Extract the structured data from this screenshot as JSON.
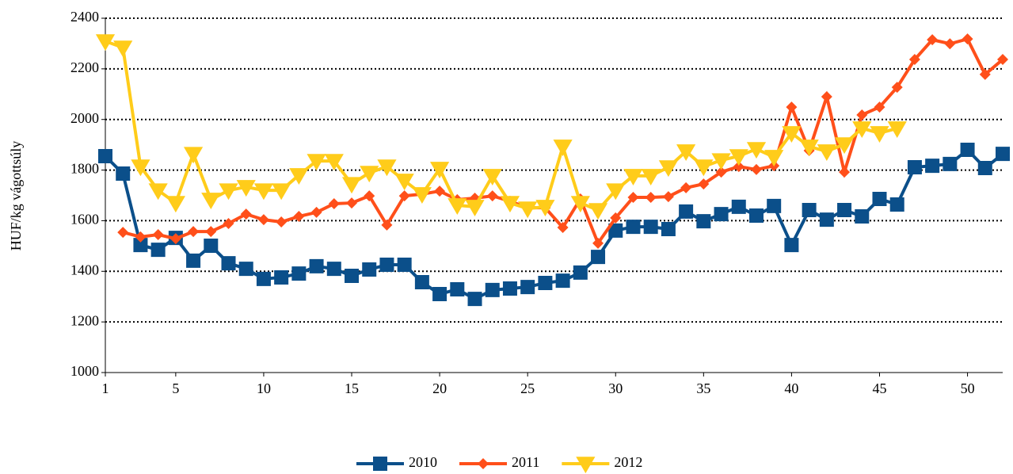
{
  "chart_data": {
    "type": "line",
    "y_label": "HUF/kg vágottsúly",
    "x": [
      1,
      2,
      3,
      4,
      5,
      6,
      7,
      8,
      9,
      10,
      11,
      12,
      13,
      14,
      15,
      16,
      17,
      18,
      19,
      20,
      21,
      22,
      23,
      24,
      25,
      26,
      27,
      28,
      29,
      30,
      31,
      32,
      33,
      34,
      35,
      36,
      37,
      38,
      39,
      40,
      41,
      42,
      43,
      44,
      45,
      46,
      47,
      48,
      49,
      50,
      51,
      52
    ],
    "xlim": [
      1,
      52
    ],
    "xticks": [
      1,
      5,
      10,
      15,
      20,
      25,
      30,
      35,
      40,
      45,
      50
    ],
    "ylim": [
      1000,
      2400
    ],
    "yticks": [
      1000,
      1200,
      1400,
      1600,
      1800,
      2000,
      2200,
      2400
    ],
    "grid": true,
    "legend": "bottom",
    "series": [
      {
        "name": "2010",
        "color": "#0b4f8a",
        "marker": "square",
        "values": [
          1855,
          1786,
          1504,
          1485,
          1532,
          1442,
          1501,
          1432,
          1410,
          1370,
          1376,
          1391,
          1420,
          1410,
          1382,
          1407,
          1426,
          1426,
          1357,
          1310,
          1329,
          1291,
          1326,
          1332,
          1338,
          1354,
          1363,
          1395,
          1457,
          1561,
          1576,
          1576,
          1567,
          1636,
          1598,
          1626,
          1655,
          1620,
          1658,
          1504,
          1642,
          1604,
          1642,
          1617,
          1686,
          1664,
          1811,
          1817,
          1824,
          1880,
          1808,
          1864
        ]
      },
      {
        "name": "2011",
        "color": "#ff4f1a",
        "marker": "diamond",
        "values": [
          null,
          1554,
          1536,
          1545,
          1529,
          1557,
          1557,
          1589,
          1626,
          1604,
          1595,
          1617,
          1633,
          1667,
          1670,
          1698,
          1583,
          1698,
          1705,
          1717,
          1683,
          1689,
          1698,
          1677,
          1651,
          1651,
          1573,
          1686,
          1511,
          1611,
          1692,
          1692,
          1695,
          1730,
          1745,
          1792,
          1814,
          1802,
          1817,
          2049,
          1877,
          2090,
          1792,
          2018,
          2049,
          2127,
          2237,
          2315,
          2299,
          2318,
          2178,
          2237
        ]
      },
      {
        "name": "2012",
        "color": "#ffcc1a",
        "marker": "triangle-down",
        "values": [
          2309,
          2284,
          1814,
          1720,
          1670,
          1864,
          1683,
          1720,
          1733,
          1720,
          1720,
          1780,
          1836,
          1836,
          1745,
          1789,
          1814,
          1758,
          1705,
          1805,
          1661,
          1655,
          1777,
          1670,
          1648,
          1655,
          1893,
          1670,
          1642,
          1720,
          1777,
          1777,
          1811,
          1874,
          1814,
          1839,
          1855,
          1883,
          1852,
          1946,
          1893,
          1874,
          1902,
          1965,
          1946,
          1965,
          null,
          null,
          null,
          null,
          null,
          null
        ]
      }
    ]
  }
}
